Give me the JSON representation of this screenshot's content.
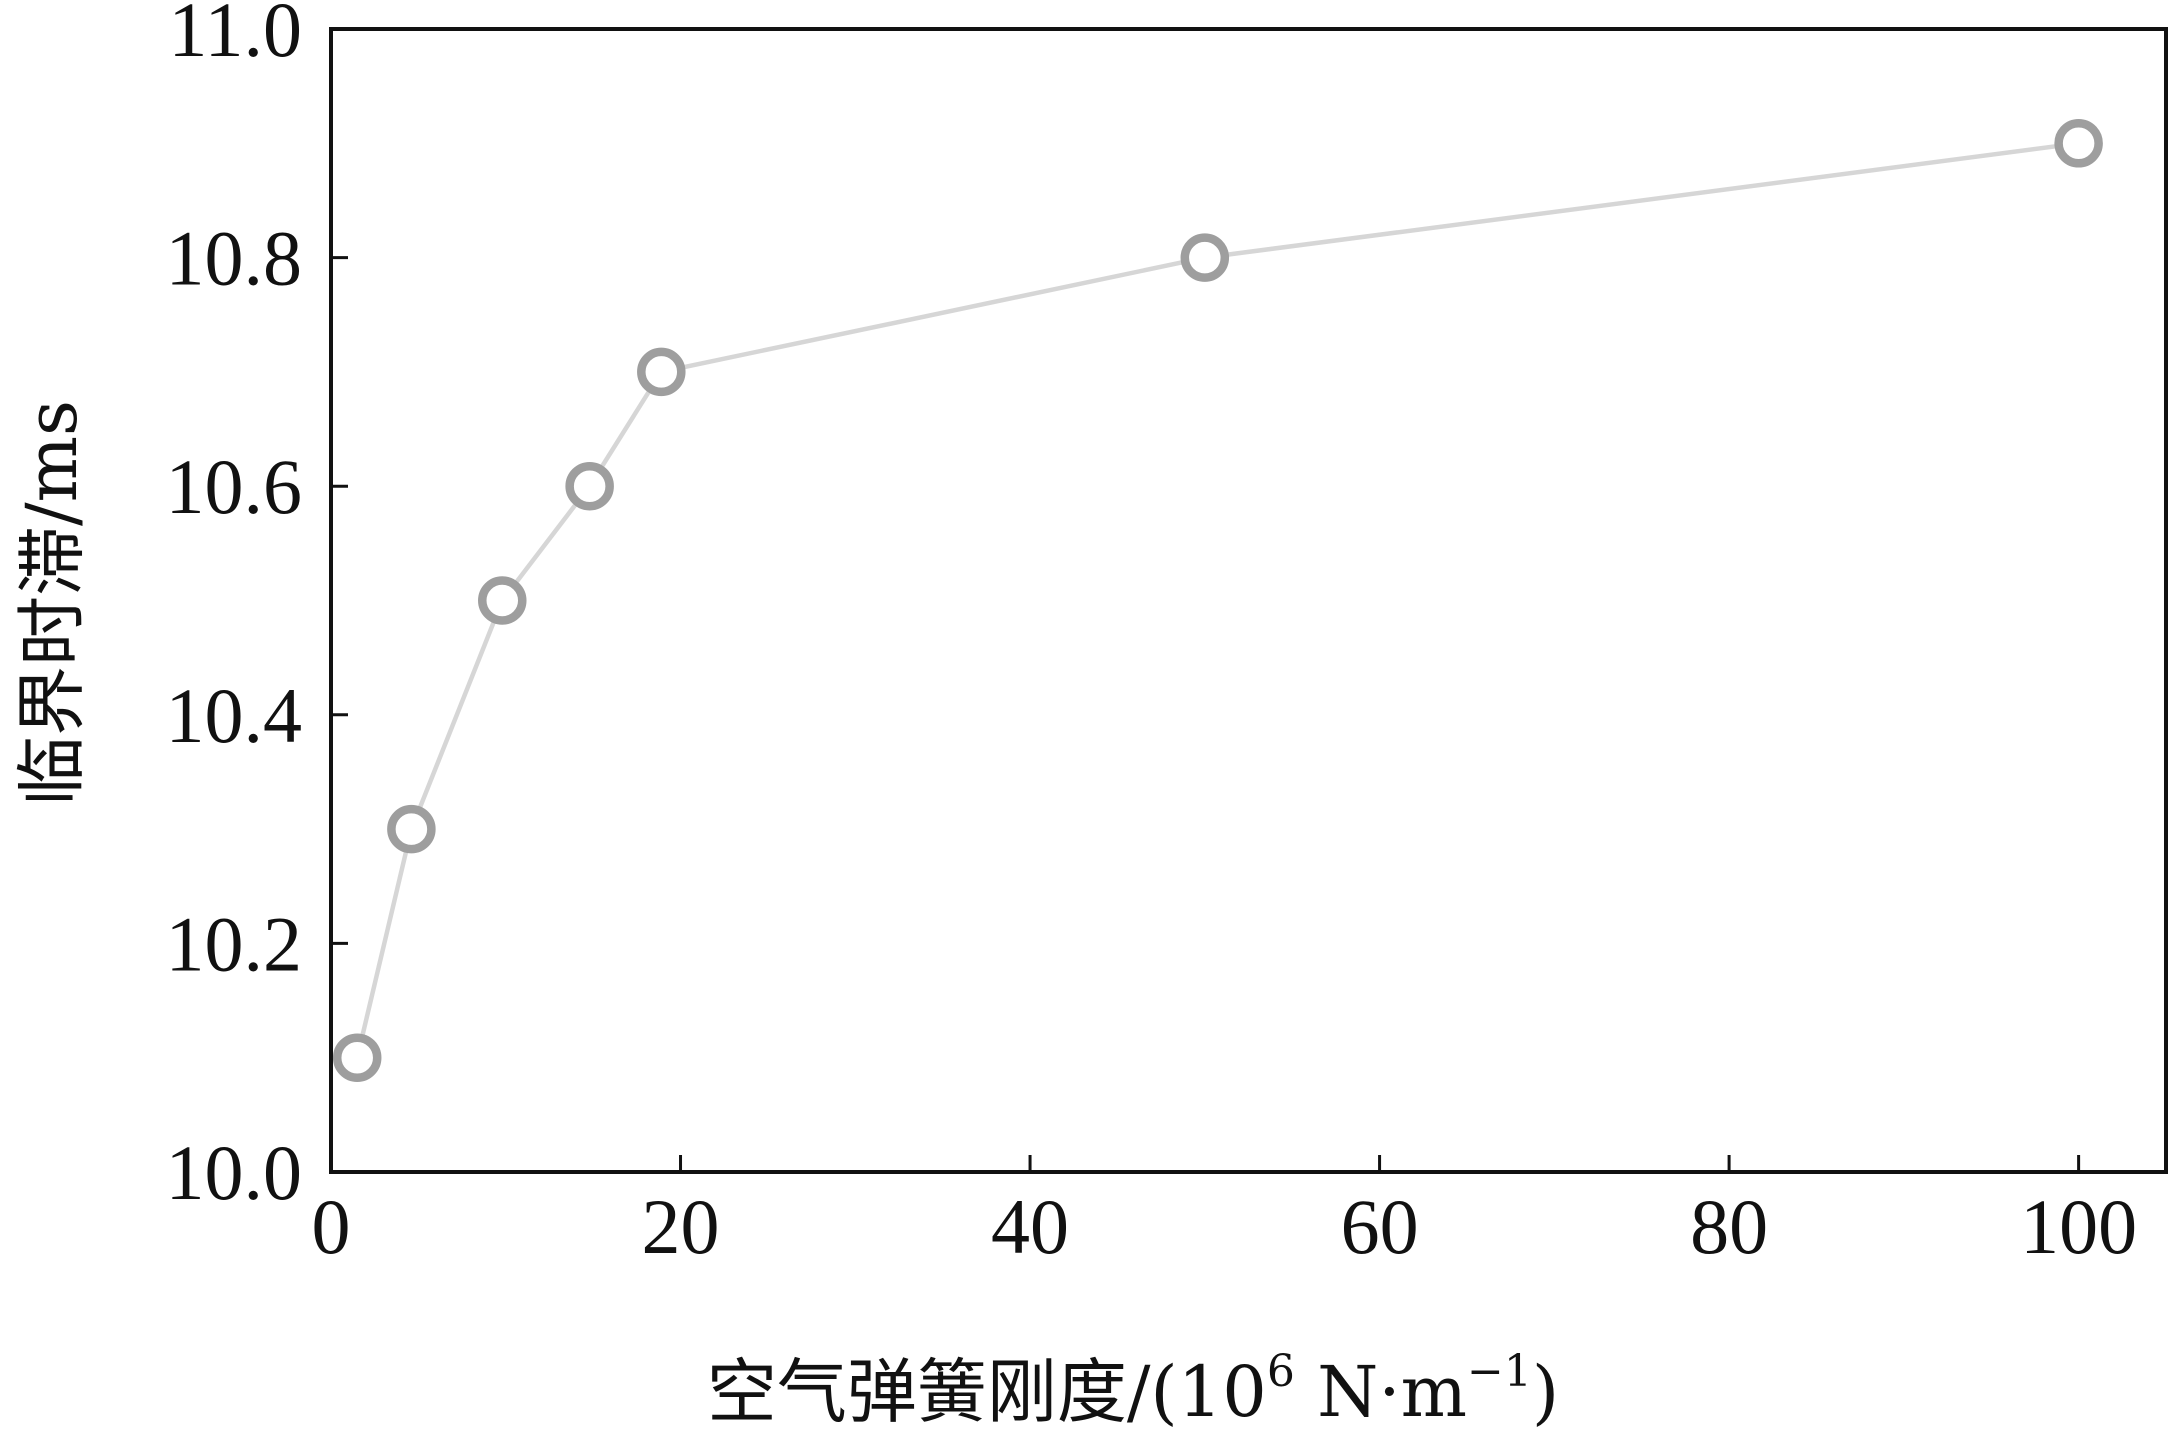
{
  "chart_data": {
    "type": "line",
    "title": "",
    "xlabel": "空气弹簧刚度/(10",
    "xlabel_exp": "6",
    "xlabel_unit": " N·m",
    "xlabel_unit_exp": "−1",
    "xlabel_close": ")",
    "ylabel": "临界时滞/ms",
    "xlim": [
      0,
      105
    ],
    "ylim": [
      10.0,
      11.0
    ],
    "xticks": [
      0,
      20,
      40,
      60,
      80,
      100
    ],
    "xtick_labels": [
      "0",
      "20",
      "40",
      "60",
      "80",
      "100"
    ],
    "yticks": [
      10.0,
      10.2,
      10.4,
      10.6,
      10.8,
      11.0
    ],
    "ytick_labels": [
      "10.0",
      "10.2",
      "10.4",
      "10.6",
      "10.8",
      "11.0"
    ],
    "grid": false,
    "series": [
      {
        "x": [
          1.5,
          4.6,
          9.8,
          14.8,
          18.9,
          50,
          100
        ],
        "y": [
          10.1,
          10.3,
          10.5,
          10.6,
          10.7,
          10.8,
          10.9
        ],
        "line_color": "#d6d6d6",
        "marker": "open-circle",
        "marker_color": "#9e9e9e"
      }
    ]
  }
}
